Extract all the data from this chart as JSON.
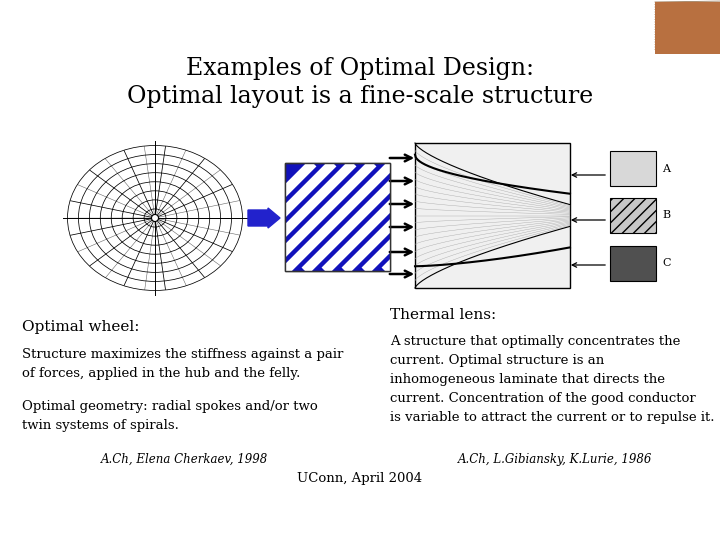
{
  "title_line1": "Examples of Optimal Design:",
  "title_line2": "Optimal layout is a fine-scale structure",
  "left_heading": "Optimal wheel:",
  "left_text1": "Structure maximizes the stiffness against a pair\nof forces, applied in the hub and the felly.",
  "left_text2": "Optimal geometry: radial spokes and/or two\ntwin systems of spirals.",
  "left_credit": "A.Ch, Elena Cherkaev, 1998",
  "right_heading": "Thermal lens:",
  "right_text": "A structure that optimally concentrates the\ncurrent. Optimal structure is an\ninhomogeneous laminate that directs the\ncurrent. Concentration of the good conductor\nis variable to attract the current or to repulse it.",
  "right_credit": "A.Ch, L.Gibiansky, K.Lurie, 1986",
  "bottom_credit": "UConn, April 2004",
  "bg_color": "#ffffff",
  "title_fontsize": 17,
  "body_fontsize": 9.5,
  "heading_fontsize": 11,
  "credit_fontsize": 8.5
}
